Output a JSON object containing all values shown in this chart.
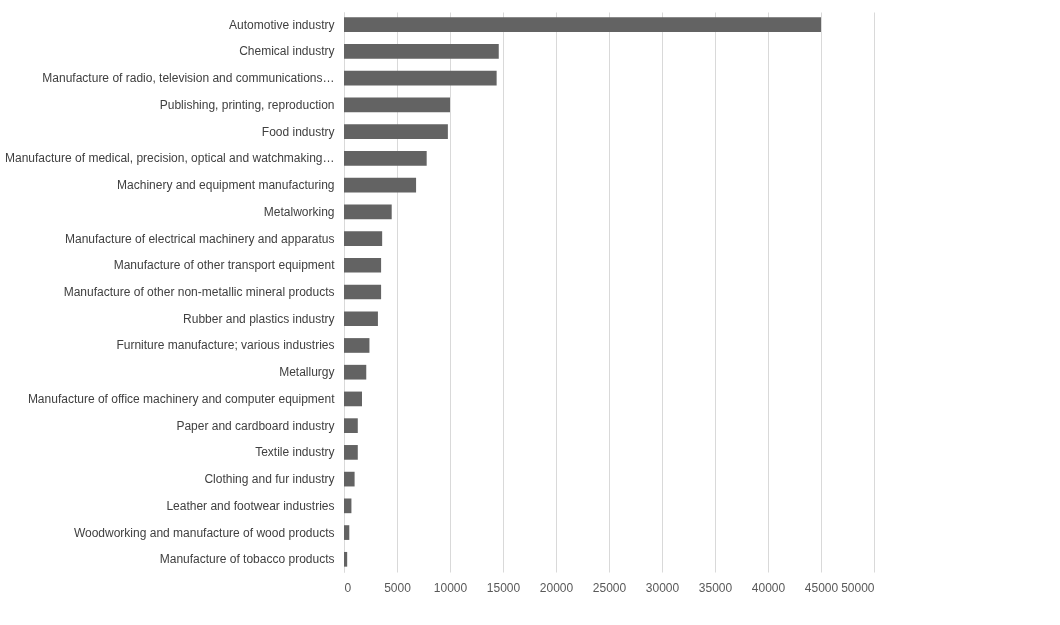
{
  "chart_data": {
    "type": "bar",
    "orientation": "horizontal",
    "categories": [
      "Automotive industry",
      "Chemical industry",
      "Manufacture of radio, television and communications…",
      "Publishing, printing, reproduction",
      "Food industry",
      "Manufacture of medical, precision, optical and watchmaking…",
      "Machinery and equipment manufacturing",
      "Metalworking",
      "Manufacture of electrical machinery and apparatus",
      "Manufacture of other transport equipment",
      "Manufacture of other non-metallic mineral products",
      "Rubber and plastics industry",
      "Furniture manufacture; various industries",
      "Metallurgy",
      "Manufacture of office machinery and computer equipment",
      "Paper and cardboard industry",
      "Textile industry",
      "Clothing and fur industry",
      "Leather and footwear industries",
      "Woodworking and manufacture of wood products",
      "Manufacture of tobacco products"
    ],
    "values": [
      45000,
      14600,
      14400,
      10000,
      9800,
      7800,
      6800,
      4500,
      3600,
      3500,
      3500,
      3200,
      2400,
      2100,
      1700,
      1300,
      1300,
      1000,
      700,
      500,
      300
    ],
    "color": "#636363",
    "xlim": [
      0,
      50000
    ],
    "xticks": [
      0,
      5000,
      10000,
      15000,
      20000,
      25000,
      30000,
      35000,
      40000,
      45000,
      50000
    ],
    "grid": "x"
  }
}
